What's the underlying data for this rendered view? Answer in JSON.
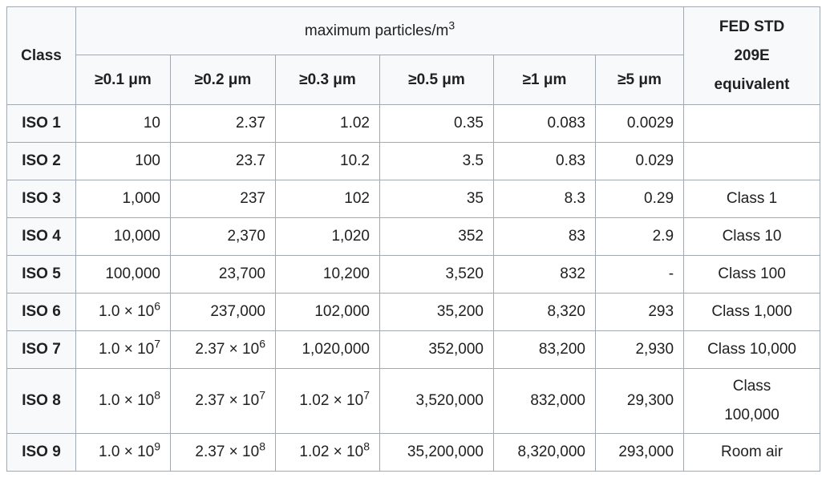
{
  "colors": {
    "border": "#a2a9b1",
    "header_background": "#f8f9fa",
    "cell_background": "#ffffff",
    "text": "#202122"
  },
  "table": {
    "corner_header": "Class",
    "group_header": "maximum particles/m^3",
    "fed_header": "FED STD\n209E\nequivalent",
    "unit_headers": [
      "≥0.1 μm",
      "≥0.2 μm",
      "≥0.3 μm",
      "≥0.5 μm",
      "≥1 μm",
      "≥5 μm"
    ],
    "rows": [
      {
        "class": "ISO 1",
        "values": [
          "10",
          "2.37",
          "1.02",
          "0.35",
          "0.083",
          "0.0029"
        ],
        "fed": ""
      },
      {
        "class": "ISO 2",
        "values": [
          "100",
          "23.7",
          "10.2",
          "3.5",
          "0.83",
          "0.029"
        ],
        "fed": ""
      },
      {
        "class": "ISO 3",
        "values": [
          "1,000",
          "237",
          "102",
          "35",
          "8.3",
          "0.29"
        ],
        "fed": "Class 1"
      },
      {
        "class": "ISO 4",
        "values": [
          "10,000",
          "2,370",
          "1,020",
          "352",
          "83",
          "2.9"
        ],
        "fed": "Class 10"
      },
      {
        "class": "ISO 5",
        "values": [
          "100,000",
          "23,700",
          "10,200",
          "3,520",
          "832",
          "-"
        ],
        "fed": "Class 100"
      },
      {
        "class": "ISO 6",
        "values": [
          "1.0 × 10^6",
          "237,000",
          "102,000",
          "35,200",
          "8,320",
          "293"
        ],
        "fed": "Class 1,000"
      },
      {
        "class": "ISO 7",
        "values": [
          "1.0 × 10^7",
          "2.37 × 10^6",
          "1,020,000",
          "352,000",
          "83,200",
          "2,930"
        ],
        "fed": "Class 10,000"
      },
      {
        "class": "ISO 8",
        "values": [
          "1.0 × 10^8",
          "2.37 × 10^7",
          "1.02 × 10^7",
          "3,520,000",
          "832,000",
          "29,300"
        ],
        "fed": "Class\n100,000"
      },
      {
        "class": "ISO 9",
        "values": [
          "1.0 × 10^9",
          "2.37 × 10^8",
          "1.02 × 10^8",
          "35,200,000",
          "8,320,000",
          "293,000"
        ],
        "fed": "Room air"
      }
    ]
  }
}
